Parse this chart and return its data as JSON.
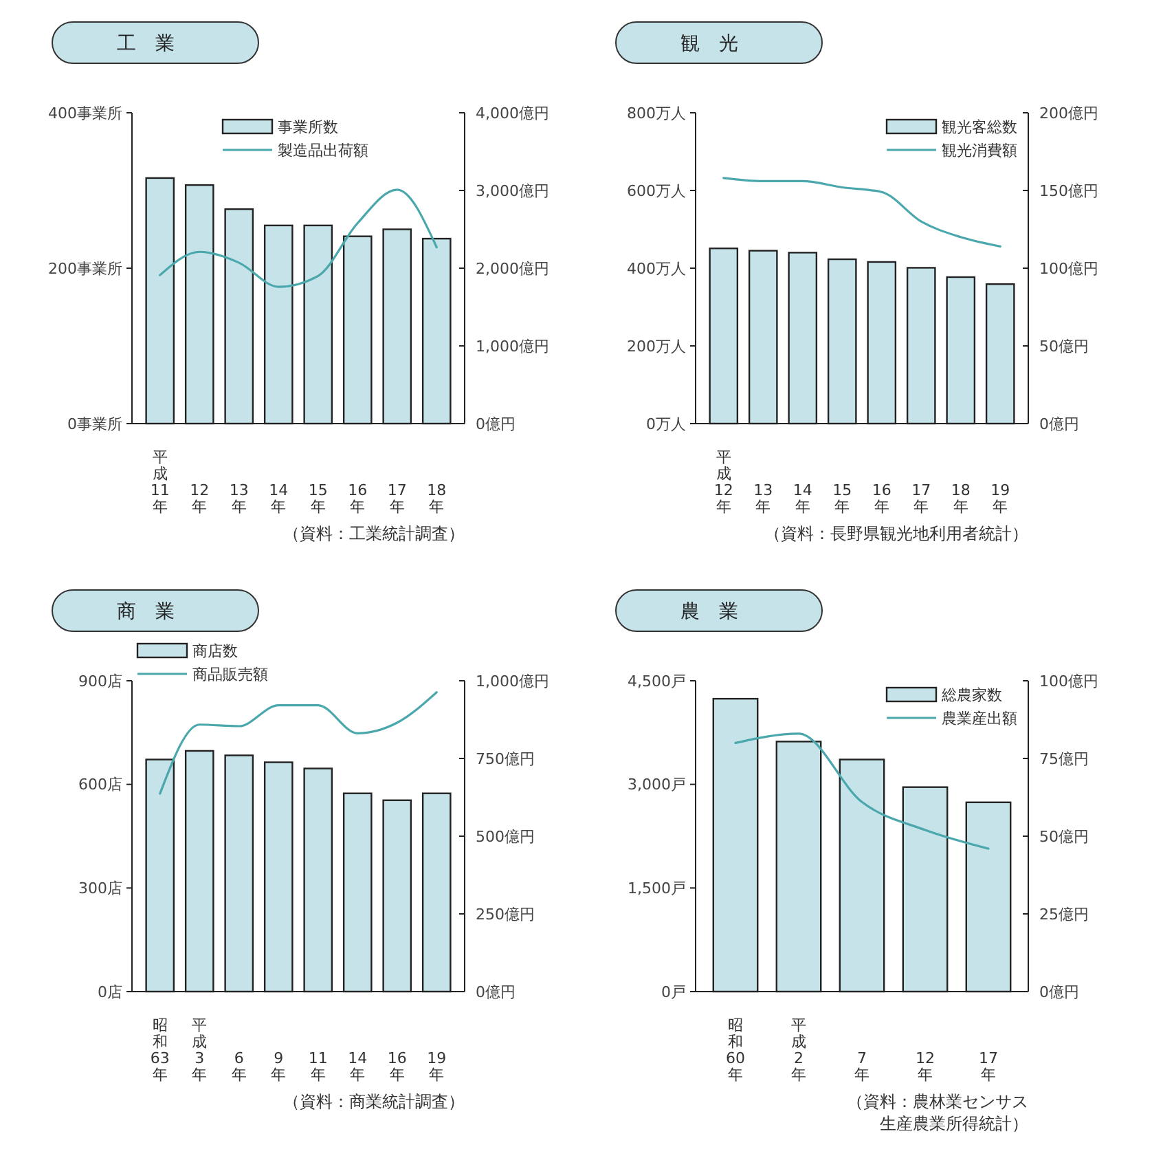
{
  "chart_data": [
    {
      "type": "bar",
      "title": "工業",
      "categories": [
        "平成11年",
        "12年",
        "13年",
        "14年",
        "15年",
        "16年",
        "17年",
        "18年"
      ],
      "series": [
        {
          "name": "事業所数",
          "color": "#c6e3ea",
          "values": [
            316,
            307,
            276,
            255,
            255,
            241,
            250,
            238
          ]
        },
        {
          "name": "製造品出荷額",
          "type": "line",
          "axis": "y2",
          "color": "#4aa8ad",
          "values": [
            1910,
            2210,
            2070,
            1760,
            1900,
            2580,
            3010,
            2270
          ]
        }
      ],
      "ylim": [
        0,
        400
      ],
      "yticks": [
        {
          "value": 0,
          "label": "0事業所"
        },
        {
          "value": 200,
          "label": "200事業所"
        },
        {
          "value": 400,
          "label": "400事業所"
        }
      ],
      "y2lim": [
        0,
        4000
      ],
      "y2ticks": [
        {
          "value": 0,
          "label": "0億円"
        },
        {
          "value": 1000,
          "label": "1,000億円"
        },
        {
          "value": 2000,
          "label": "2,000億円"
        },
        {
          "value": 3000,
          "label": "3,000億円"
        },
        {
          "value": 4000,
          "label": "4,000億円"
        }
      ],
      "legend": "top",
      "annotations": [
        "（資料：工業統計調査）"
      ]
    },
    {
      "type": "bar",
      "title": "観光",
      "categories": [
        "平成12年",
        "13年",
        "14年",
        "15年",
        "16年",
        "17年",
        "18年",
        "19年"
      ],
      "series": [
        {
          "name": "観光客総数",
          "color": "#c6e3ea",
          "values": [
            451,
            445,
            440,
            423,
            416,
            401,
            377,
            359
          ]
        },
        {
          "name": "観光消費額",
          "type": "line",
          "axis": "y2",
          "color": "#4aa8ad",
          "values": [
            158,
            156,
            156,
            152,
            149,
            130,
            120,
            114
          ]
        }
      ],
      "ylim": [
        0,
        800
      ],
      "yticks": [
        {
          "value": 0,
          "label": "0万人"
        },
        {
          "value": 200,
          "label": "200万人"
        },
        {
          "value": 400,
          "label": "400万人"
        },
        {
          "value": 600,
          "label": "600万人"
        },
        {
          "value": 800,
          "label": "800万人"
        }
      ],
      "y2lim": [
        0,
        200
      ],
      "y2ticks": [
        {
          "value": 0,
          "label": "0億円"
        },
        {
          "value": 50,
          "label": "50億円"
        },
        {
          "value": 100,
          "label": "100億円"
        },
        {
          "value": 150,
          "label": "150億円"
        },
        {
          "value": 200,
          "label": "200億円"
        }
      ],
      "legend": "top right",
      "annotations": [
        "（資料：長野県観光地利用者統計）"
      ]
    },
    {
      "type": "bar",
      "title": "商業",
      "categories": [
        "昭和63年",
        "平成3年",
        "6年",
        "9年",
        "11年",
        "14年",
        "16年",
        "19年"
      ],
      "series": [
        {
          "name": "商店数",
          "color": "#c6e3ea",
          "values": [
            672,
            697,
            684,
            664,
            646,
            574,
            554,
            574
          ]
        },
        {
          "name": "商品販売額",
          "type": "line",
          "axis": "y2",
          "color": "#4aa8ad",
          "values": [
            637,
            859,
            854,
            921,
            921,
            831,
            865,
            963
          ]
        }
      ],
      "ylim": [
        0,
        900
      ],
      "yticks": [
        {
          "value": 0,
          "label": "0店"
        },
        {
          "value": 300,
          "label": "300店"
        },
        {
          "value": 600,
          "label": "600店"
        },
        {
          "value": 900,
          "label": "900店"
        }
      ],
      "y2lim": [
        0,
        1000
      ],
      "y2ticks": [
        {
          "value": 0,
          "label": "0億円"
        },
        {
          "value": 250,
          "label": "250億円"
        },
        {
          "value": 500,
          "label": "500億円"
        },
        {
          "value": 750,
          "label": "750億円"
        },
        {
          "value": 1000,
          "label": "1,000億円"
        }
      ],
      "legend": "top left",
      "annotations": [
        "（資料：商業統計調査）"
      ]
    },
    {
      "type": "bar",
      "title": "農業",
      "categories": [
        "昭和60年",
        "平成2年",
        "7年",
        "12年",
        "17年"
      ],
      "series": [
        {
          "name": "総農家数",
          "color": "#c6e3ea",
          "values": [
            4240,
            3620,
            3360,
            2960,
            2740
          ]
        },
        {
          "name": "農業産出額",
          "type": "line",
          "axis": "y2",
          "color": "#4aa8ad",
          "values": [
            80,
            83,
            61,
            52,
            46
          ]
        }
      ],
      "ylim": [
        0,
        4500
      ],
      "yticks": [
        {
          "value": 0,
          "label": "0戸"
        },
        {
          "value": 1500,
          "label": "1,500戸"
        },
        {
          "value": 3000,
          "label": "3,000戸"
        },
        {
          "value": 4500,
          "label": "4,500戸"
        }
      ],
      "y2lim": [
        0,
        100
      ],
      "y2ticks": [
        {
          "value": 0,
          "label": "0億円"
        },
        {
          "value": 25,
          "label": "25億円"
        },
        {
          "value": 50,
          "label": "50億円"
        },
        {
          "value": 75,
          "label": "75億円"
        },
        {
          "value": 100,
          "label": "100億円"
        }
      ],
      "legend": "top right",
      "annotations": [
        "（資料：農林業センサス",
        "生産農業所得統計）"
      ]
    }
  ]
}
